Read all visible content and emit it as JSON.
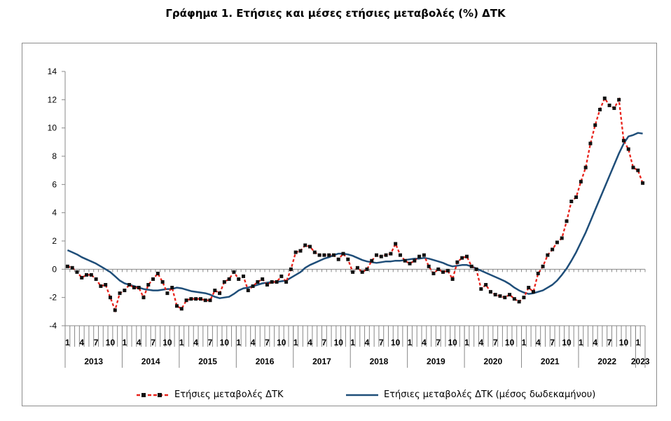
{
  "title": "Γράφημα 1. Ετήσιες και μέσες ετήσιες μεταβολές (%) ΔΤΚ",
  "legend": {
    "annual": "Ετήσιες μεταβολές ΔΤΚ",
    "average": "Ετήσιες μεταβολές ΔΤΚ (μέσος δωδεκαμήνου)"
  },
  "colors": {
    "annual": "#e8231b",
    "markers": "#111111",
    "average": "#1f4e79"
  },
  "chart_data": {
    "type": "line",
    "title": "Γράφημα 1. Ετήσιες και μέσες ετήσιες μεταβολές (%) ΔΤΚ",
    "xlabel": "",
    "ylabel": "",
    "ylim": [
      -4,
      14
    ],
    "yticks": [
      -4,
      -2,
      0,
      2,
      4,
      6,
      8,
      10,
      12,
      14
    ],
    "month_tick_labels": [
      "1",
      "4",
      "7",
      "10"
    ],
    "years": [
      "2013",
      "2014",
      "2015",
      "2016",
      "2017",
      "2018",
      "2019",
      "2020",
      "2021",
      "2022",
      "2023"
    ],
    "start": "2013-01",
    "end": "2023-02",
    "grid": false,
    "legend_position": "bottom",
    "series": [
      {
        "name": "Ετήσιες μεταβολές ΔΤΚ",
        "style": "dashed-markers",
        "values": [
          0.2,
          0.1,
          -0.2,
          -0.6,
          -0.4,
          -0.4,
          -0.7,
          -1.2,
          -1.1,
          -2.0,
          -2.9,
          -1.7,
          -1.5,
          -1.1,
          -1.3,
          -1.3,
          -2.0,
          -1.1,
          -0.7,
          -0.3,
          -0.9,
          -1.7,
          -1.3,
          -2.6,
          -2.8,
          -2.2,
          -2.1,
          -2.1,
          -2.1,
          -2.2,
          -2.2,
          -1.5,
          -1.7,
          -0.9,
          -0.7,
          -0.2,
          -0.7,
          -0.5,
          -1.5,
          -1.2,
          -0.9,
          -0.7,
          -1.1,
          -0.9,
          -0.9,
          -0.5,
          -0.9,
          0.0,
          1.2,
          1.3,
          1.7,
          1.6,
          1.2,
          1.0,
          1.0,
          1.0,
          1.0,
          0.7,
          1.1,
          0.7,
          -0.2,
          0.1,
          -0.2,
          0.0,
          0.6,
          1.0,
          0.9,
          1.0,
          1.1,
          1.8,
          1.0,
          0.6,
          0.4,
          0.6,
          0.9,
          1.0,
          0.2,
          -0.3,
          0.0,
          -0.2,
          -0.1,
          -0.7,
          0.5,
          0.8,
          0.9,
          0.2,
          0.0,
          -1.4,
          -1.1,
          -1.6,
          -1.8,
          -1.9,
          -2.0,
          -1.8,
          -2.1,
          -2.3,
          -2.0,
          -1.3,
          -1.6,
          -0.3,
          0.2,
          1.0,
          1.4,
          1.9,
          2.2,
          3.4,
          4.8,
          5.1,
          6.2,
          7.2,
          8.9,
          10.2,
          11.3,
          12.1,
          11.6,
          11.4,
          12.0,
          9.1,
          8.5,
          7.2,
          7.0,
          6.1
        ]
      },
      {
        "name": "Ετήσιες μεταβολές ΔΤΚ (μέσος δωδεκαμήνου)",
        "style": "solid",
        "values": [
          1.35,
          1.2,
          1.05,
          0.85,
          0.7,
          0.55,
          0.4,
          0.2,
          0.0,
          -0.2,
          -0.5,
          -0.8,
          -1.0,
          -1.1,
          -1.2,
          -1.3,
          -1.4,
          -1.45,
          -1.5,
          -1.5,
          -1.45,
          -1.4,
          -1.4,
          -1.3,
          -1.35,
          -1.45,
          -1.55,
          -1.6,
          -1.65,
          -1.7,
          -1.8,
          -1.95,
          -2.05,
          -2.0,
          -1.95,
          -1.75,
          -1.5,
          -1.35,
          -1.3,
          -1.2,
          -1.1,
          -1.0,
          -0.95,
          -0.9,
          -0.9,
          -0.85,
          -0.8,
          -0.6,
          -0.4,
          -0.2,
          0.1,
          0.3,
          0.45,
          0.6,
          0.75,
          0.85,
          1.0,
          1.1,
          1.1,
          1.05,
          0.95,
          0.8,
          0.65,
          0.55,
          0.5,
          0.45,
          0.5,
          0.55,
          0.55,
          0.6,
          0.6,
          0.65,
          0.7,
          0.75,
          0.75,
          0.8,
          0.75,
          0.65,
          0.55,
          0.45,
          0.3,
          0.2,
          0.25,
          0.3,
          0.3,
          0.2,
          0.05,
          -0.1,
          -0.25,
          -0.4,
          -0.55,
          -0.7,
          -0.85,
          -1.05,
          -1.3,
          -1.5,
          -1.65,
          -1.75,
          -1.7,
          -1.6,
          -1.5,
          -1.3,
          -1.1,
          -0.8,
          -0.4,
          0.05,
          0.6,
          1.2,
          1.9,
          2.6,
          3.4,
          4.2,
          5.0,
          5.8,
          6.6,
          7.4,
          8.2,
          8.9,
          9.4,
          9.5,
          9.65,
          9.6
        ]
      }
    ]
  }
}
